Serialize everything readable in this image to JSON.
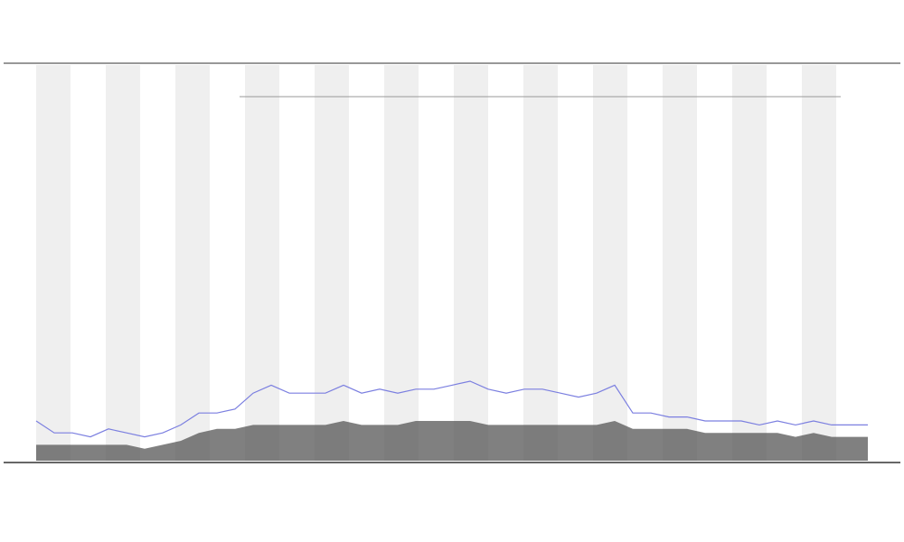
{
  "chart_data": {
    "type": "line",
    "x": [
      0,
      1,
      2,
      3,
      4,
      5,
      6,
      7,
      8,
      9,
      10,
      11,
      12,
      13,
      14,
      15,
      16,
      17,
      18,
      19,
      20,
      21,
      22,
      23,
      24,
      25,
      26,
      27,
      28,
      29,
      30,
      31,
      32,
      33,
      34,
      35,
      36,
      37,
      38,
      39,
      40,
      41,
      42,
      43,
      44,
      45,
      46
    ],
    "xlim": [
      0,
      46
    ],
    "ylim": [
      0,
      100
    ],
    "series": [
      {
        "color": "#7b7fe0",
        "values": [
          10,
          7,
          7,
          6,
          8,
          7,
          6,
          7,
          9,
          12,
          12,
          13,
          17,
          19,
          17,
          17,
          17,
          19,
          17,
          18,
          17,
          18,
          18,
          19,
          20,
          18,
          17,
          18,
          18,
          17,
          16,
          17,
          19,
          12,
          12,
          11,
          11,
          10,
          10,
          10,
          9,
          10,
          9,
          10,
          9,
          9,
          9
        ]
      },
      {
        "color": "#555555",
        "values": [
          4,
          4,
          4,
          4,
          4,
          4,
          3,
          4,
          5,
          7,
          8,
          8,
          9,
          9,
          9,
          9,
          9,
          10,
          9,
          9,
          9,
          10,
          10,
          10,
          10,
          9,
          9,
          9,
          9,
          9,
          9,
          9,
          10,
          8,
          8,
          8,
          8,
          7,
          7,
          7,
          7,
          7,
          6,
          7,
          6,
          6,
          6
        ]
      }
    ]
  }
}
